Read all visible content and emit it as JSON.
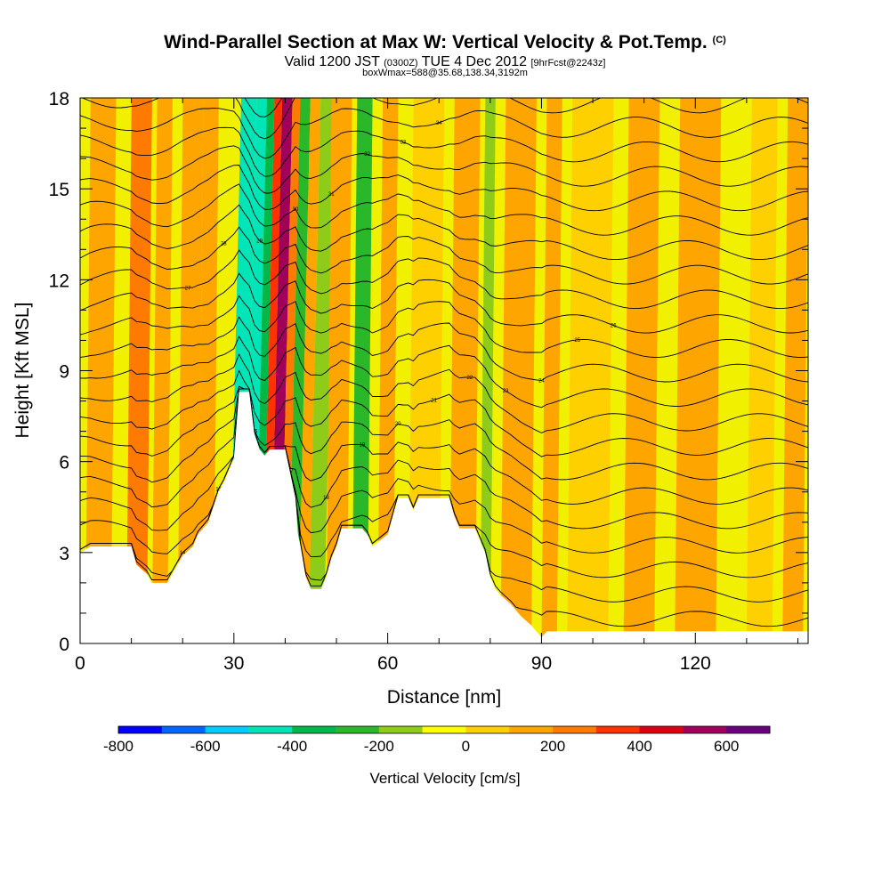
{
  "header": {
    "title": "Wind-Parallel Section at Max W: Vertical Velocity & Pot.Temp.",
    "title_mark": "(C)",
    "valid_prefix": "Valid 1200 JST",
    "valid_utc": "(0300Z)",
    "valid_date": "TUE 4 Dec 2012",
    "forecast_info": "[9hrFcst@2243z]",
    "box_info": "boxWmax=588@35.68,138.34,3192m"
  },
  "chart_data": {
    "type": "heatmap",
    "xlabel": "Distance [nm]",
    "ylabel": "Height [Kft MSL]",
    "xlim": [
      0,
      142
    ],
    "ylim": [
      0,
      18
    ],
    "x_ticks": [
      "0",
      "30",
      "60",
      "90",
      "120"
    ],
    "y_ticks": [
      "0",
      "3",
      "6",
      "9",
      "12",
      "15",
      "18"
    ],
    "terrain_kft": [
      [
        0,
        3.0
      ],
      [
        2,
        3.2
      ],
      [
        10,
        3.2
      ],
      [
        11,
        2.6
      ],
      [
        13,
        2.3
      ],
      [
        14,
        2.0
      ],
      [
        17,
        2.0
      ],
      [
        18,
        2.3
      ],
      [
        20,
        2.9
      ],
      [
        22,
        3.2
      ],
      [
        23,
        3.6
      ],
      [
        25,
        4.0
      ],
      [
        27,
        5.0
      ],
      [
        28,
        5.3
      ],
      [
        30,
        6.1
      ],
      [
        31,
        8.3
      ],
      [
        33,
        8.3
      ],
      [
        34,
        6.9
      ],
      [
        35,
        6.4
      ],
      [
        36,
        6.2
      ],
      [
        37,
        6.4
      ],
      [
        40,
        6.4
      ],
      [
        41,
        5.6
      ],
      [
        42,
        4.8
      ],
      [
        42.5,
        3.6
      ],
      [
        43,
        3.2
      ],
      [
        44,
        2.2
      ],
      [
        45,
        1.8
      ],
      [
        47,
        1.8
      ],
      [
        48,
        2.2
      ],
      [
        49,
        2.8
      ],
      [
        50,
        3.2
      ],
      [
        51,
        3.8
      ],
      [
        55,
        3.8
      ],
      [
        56,
        3.6
      ],
      [
        57,
        3.2
      ],
      [
        60,
        3.6
      ],
      [
        61,
        4.2
      ],
      [
        62,
        4.8
      ],
      [
        64,
        4.8
      ],
      [
        65,
        4.4
      ],
      [
        66,
        4.8
      ],
      [
        72,
        4.8
      ],
      [
        73,
        4.2
      ],
      [
        74,
        3.8
      ],
      [
        77,
        3.8
      ],
      [
        78,
        3.4
      ],
      [
        79,
        3.0
      ],
      [
        80,
        2.2
      ],
      [
        81,
        1.8
      ],
      [
        82,
        1.6
      ],
      [
        84,
        1.3
      ],
      [
        85,
        1.1
      ],
      [
        86,
        0.9
      ],
      [
        88,
        0.6
      ],
      [
        89,
        0.4
      ],
      [
        90,
        0.2
      ],
      [
        91,
        0.4
      ],
      [
        142,
        0.4
      ]
    ],
    "velocity_bands": [
      {
        "x": 1,
        "w": 5,
        "v": 150
      },
      {
        "x": 9,
        "w": 4,
        "v": 200
      },
      {
        "x": 14,
        "w": 3,
        "v": 150
      },
      {
        "x": 19,
        "w": 4,
        "v": 150
      },
      {
        "x": 23,
        "w": 3,
        "v": 100
      },
      {
        "x": 29,
        "w": 3,
        "v": -450
      },
      {
        "x": 32,
        "w": 2,
        "v": -500
      },
      {
        "x": 34,
        "w": 1.5,
        "v": -350
      },
      {
        "x": 35.5,
        "w": 1.5,
        "v": 350
      },
      {
        "x": 37,
        "w": 2,
        "v": 550
      },
      {
        "x": 39,
        "w": 1.5,
        "v": 250
      },
      {
        "x": 40.5,
        "w": 2,
        "v": -300
      },
      {
        "x": 42.5,
        "w": 2,
        "v": 150
      },
      {
        "x": 44.5,
        "w": 3,
        "v": -150
      },
      {
        "x": 48,
        "w": 4,
        "v": 150
      },
      {
        "x": 53,
        "w": 3,
        "v": -250
      },
      {
        "x": 58,
        "w": 3,
        "v": 100
      },
      {
        "x": 64,
        "w": 6,
        "v": 50
      },
      {
        "x": 72,
        "w": 5,
        "v": 120
      },
      {
        "x": 78,
        "w": 2,
        "v": -150
      },
      {
        "x": 82,
        "w": 6,
        "v": 100
      },
      {
        "x": 90,
        "w": 3,
        "v": 100
      },
      {
        "x": 95,
        "w": 8,
        "v": 60
      },
      {
        "x": 106,
        "w": 6,
        "v": 120
      },
      {
        "x": 116,
        "w": 8,
        "v": 130
      },
      {
        "x": 130,
        "w": 5,
        "v": 50
      },
      {
        "x": 137,
        "w": 4,
        "v": 110
      }
    ],
    "colorbar": {
      "title": "Vertical Velocity [cm/s]",
      "labels": [
        "-800",
        "-600",
        "-400",
        "-200",
        "0",
        "200",
        "400",
        "600"
      ],
      "label_values": [
        -800,
        -600,
        -400,
        -200,
        0,
        200,
        400,
        600
      ],
      "range": [
        -800,
        700
      ],
      "colors": [
        "#0000ff",
        "#0066ff",
        "#00ccff",
        "#00e5b8",
        "#00b84a",
        "#2ab82a",
        "#8fcc1a",
        "#ffff00",
        "#ffd000",
        "#ffa500",
        "#ff7a00",
        "#ff3300",
        "#dd0011",
        "#a0005a",
        "#6a0080"
      ]
    },
    "contour_labels": [
      "14",
      "15",
      "16",
      "17",
      "18",
      "19",
      "20",
      "21",
      "22",
      "23",
      "24",
      "25",
      "26",
      "27",
      "28",
      "29",
      "30",
      "31",
      "32",
      "33",
      "34",
      "35",
      "36"
    ]
  }
}
